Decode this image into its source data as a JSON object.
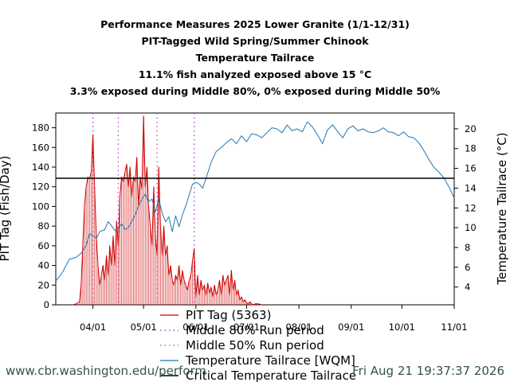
{
  "chart_data": {
    "type": "line",
    "title_lines": [
      "Performance Measures 2025 Lower Granite (1/1-12/31)",
      "PIT-Tagged Wild Spring/Summer Chinook",
      "Temperature Tailrace",
      "11.1% fish analyzed exposed above 15 °C",
      "3.3% exposed during Middle 80%, 0% exposed during Middle 50%"
    ],
    "ylabel": "PIT Tag (Fish/Day)",
    "y2label": "Temperature Tailrace (°C)",
    "x_ticks": [
      "04/01",
      "05/01",
      "06/01",
      "07/01",
      "08/01",
      "09/01",
      "10/01",
      "11/01"
    ],
    "x_tick_dates": [
      "2025-04-01",
      "2025-05-01",
      "2025-06-01",
      "2025-07-01",
      "2025-08-01",
      "2025-09-01",
      "2025-10-01",
      "2025-11-01"
    ],
    "xlim": [
      "2025-03-10",
      "2025-11-01"
    ],
    "ylim": [
      0,
      195
    ],
    "y_ticks": [
      0,
      20,
      40,
      60,
      80,
      100,
      120,
      140,
      160,
      180
    ],
    "y2lim": [
      2.2,
      21.6
    ],
    "y2_ticks": [
      4,
      6,
      8,
      10,
      12,
      14,
      16,
      18,
      20
    ],
    "grid": false,
    "legend_position": "bottom",
    "legend": [
      "PIT Tag (5363)",
      "Middle 80% Run period",
      "Middle 50% Run period",
      "Temperature Tailrace [WQM]",
      "Critical Temperature Tailrace"
    ],
    "critical_temperature": 15,
    "run_period_middle_80": [
      "2025-04-01",
      "2025-05-31"
    ],
    "run_period_middle_50": [
      "2025-04-16",
      "2025-05-09"
    ],
    "pit_tag": {
      "name": "PIT Tag (5363)",
      "color": "#cc0000",
      "x": [
        "2025-03-20",
        "2025-03-22",
        "2025-03-24",
        "2025-03-25",
        "2025-03-26",
        "2025-03-27",
        "2025-03-28",
        "2025-03-29",
        "2025-03-30",
        "2025-03-31",
        "2025-04-01",
        "2025-04-02",
        "2025-04-03",
        "2025-04-04",
        "2025-04-05",
        "2025-04-06",
        "2025-04-07",
        "2025-04-08",
        "2025-04-09",
        "2025-04-10",
        "2025-04-11",
        "2025-04-12",
        "2025-04-13",
        "2025-04-14",
        "2025-04-15",
        "2025-04-16",
        "2025-04-17",
        "2025-04-18",
        "2025-04-19",
        "2025-04-20",
        "2025-04-21",
        "2025-04-22",
        "2025-04-23",
        "2025-04-24",
        "2025-04-25",
        "2025-04-26",
        "2025-04-27",
        "2025-04-28",
        "2025-04-29",
        "2025-04-30",
        "2025-05-01",
        "2025-05-02",
        "2025-05-03",
        "2025-05-04",
        "2025-05-05",
        "2025-05-06",
        "2025-05-07",
        "2025-05-08",
        "2025-05-09",
        "2025-05-10",
        "2025-05-11",
        "2025-05-12",
        "2025-05-13",
        "2025-05-14",
        "2025-05-15",
        "2025-05-16",
        "2025-05-17",
        "2025-05-18",
        "2025-05-19",
        "2025-05-20",
        "2025-05-21",
        "2025-05-22",
        "2025-05-23",
        "2025-05-24",
        "2025-05-25",
        "2025-05-26",
        "2025-05-27",
        "2025-05-28",
        "2025-05-29",
        "2025-05-30",
        "2025-05-31",
        "2025-06-01",
        "2025-06-02",
        "2025-06-03",
        "2025-06-04",
        "2025-06-05",
        "2025-06-06",
        "2025-06-07",
        "2025-06-08",
        "2025-06-09",
        "2025-06-10",
        "2025-06-11",
        "2025-06-12",
        "2025-06-13",
        "2025-06-14",
        "2025-06-15",
        "2025-06-16",
        "2025-06-17",
        "2025-06-18",
        "2025-06-19",
        "2025-06-20",
        "2025-06-21",
        "2025-06-22",
        "2025-06-23",
        "2025-06-24",
        "2025-06-25",
        "2025-06-26",
        "2025-06-27",
        "2025-06-28",
        "2025-06-29",
        "2025-06-30",
        "2025-07-01",
        "2025-07-02",
        "2025-07-03",
        "2025-07-04",
        "2025-07-05",
        "2025-07-06",
        "2025-07-08",
        "2025-07-10"
      ],
      "values": [
        0,
        1,
        3,
        20,
        60,
        100,
        120,
        130,
        128,
        135,
        173,
        120,
        70,
        40,
        20,
        30,
        40,
        25,
        50,
        30,
        60,
        40,
        70,
        40,
        85,
        60,
        110,
        130,
        125,
        135,
        143,
        120,
        140,
        110,
        130,
        125,
        150,
        100,
        130,
        118,
        192,
        120,
        140,
        100,
        80,
        60,
        120,
        70,
        50,
        140,
        80,
        50,
        80,
        50,
        60,
        30,
        40,
        25,
        20,
        30,
        25,
        40,
        20,
        35,
        25,
        20,
        15,
        25,
        30,
        45,
        57,
        8,
        30,
        10,
        25,
        15,
        20,
        10,
        22,
        12,
        18,
        8,
        20,
        10,
        15,
        25,
        10,
        30,
        20,
        25,
        30,
        10,
        35,
        15,
        25,
        10,
        15,
        5,
        8,
        3,
        5,
        2,
        1,
        3,
        1,
        0,
        1,
        1,
        0
      ]
    },
    "temperature_tailrace": {
      "name": "Temperature Tailrace [WQM]",
      "color": "#1f77b4",
      "x": [
        "2025-03-10",
        "2025-03-14",
        "2025-03-18",
        "2025-03-22",
        "2025-03-25",
        "2025-03-28",
        "2025-03-30",
        "2025-04-01",
        "2025-04-03",
        "2025-04-05",
        "2025-04-08",
        "2025-04-10",
        "2025-04-12",
        "2025-04-14",
        "2025-04-16",
        "2025-04-18",
        "2025-04-20",
        "2025-04-22",
        "2025-04-24",
        "2025-04-26",
        "2025-04-28",
        "2025-04-30",
        "2025-05-02",
        "2025-05-04",
        "2025-05-06",
        "2025-05-08",
        "2025-05-10",
        "2025-05-12",
        "2025-05-14",
        "2025-05-16",
        "2025-05-18",
        "2025-05-20",
        "2025-05-22",
        "2025-05-24",
        "2025-05-26",
        "2025-05-28",
        "2025-05-30",
        "2025-06-01",
        "2025-06-03",
        "2025-06-05",
        "2025-06-07",
        "2025-06-10",
        "2025-06-13",
        "2025-06-16",
        "2025-06-19",
        "2025-06-22",
        "2025-06-25",
        "2025-06-28",
        "2025-07-01",
        "2025-07-04",
        "2025-07-07",
        "2025-07-10",
        "2025-07-13",
        "2025-07-16",
        "2025-07-19",
        "2025-07-22",
        "2025-07-25",
        "2025-07-28",
        "2025-07-31",
        "2025-08-03",
        "2025-08-06",
        "2025-08-09",
        "2025-08-12",
        "2025-08-15",
        "2025-08-18",
        "2025-08-21",
        "2025-08-24",
        "2025-08-27",
        "2025-08-30",
        "2025-09-02",
        "2025-09-05",
        "2025-09-08",
        "2025-09-11",
        "2025-09-14",
        "2025-09-17",
        "2025-09-20",
        "2025-09-23",
        "2025-09-26",
        "2025-09-29",
        "2025-10-02",
        "2025-10-05",
        "2025-10-08",
        "2025-10-11",
        "2025-10-14",
        "2025-10-17",
        "2025-10-20",
        "2025-10-23",
        "2025-10-26",
        "2025-10-29",
        "2025-11-01"
      ],
      "values": [
        4.6,
        5.5,
        6.8,
        7.0,
        7.4,
        8.2,
        9.4,
        9.2,
        8.9,
        9.6,
        9.8,
        10.6,
        10.2,
        9.7,
        9.9,
        10.4,
        9.8,
        10.0,
        10.6,
        11.3,
        12.2,
        12.9,
        13.4,
        12.6,
        12.9,
        11.6,
        12.9,
        11.5,
        10.6,
        11.1,
        9.6,
        11.2,
        10.1,
        11.3,
        12.2,
        13.3,
        14.4,
        14.6,
        14.4,
        14.0,
        15.0,
        16.6,
        17.7,
        18.1,
        18.6,
        19.0,
        18.5,
        19.3,
        18.7,
        19.5,
        19.4,
        19.1,
        19.6,
        20.1,
        20.0,
        19.6,
        20.4,
        19.8,
        20.0,
        19.7,
        20.7,
        20.2,
        19.4,
        18.5,
        19.9,
        20.4,
        19.7,
        19.1,
        20.0,
        20.3,
        19.8,
        20.0,
        19.7,
        19.6,
        19.8,
        20.1,
        19.7,
        19.6,
        19.3,
        19.7,
        19.2,
        19.1,
        18.6,
        17.8,
        16.9,
        16.1,
        15.6,
        15.0,
        14.1,
        13.0
      ]
    }
  },
  "footer": {
    "left": "www.cbr.washington.edu/perform",
    "right": "Fri Aug 21 19:37:37 2026"
  },
  "colors": {
    "pit_tag": "#cc0000",
    "temperature": "#1f77b4",
    "middle_80": "#9933cc",
    "middle_50": "#cc33cc",
    "critical": "#000000",
    "footer": "#335544"
  }
}
